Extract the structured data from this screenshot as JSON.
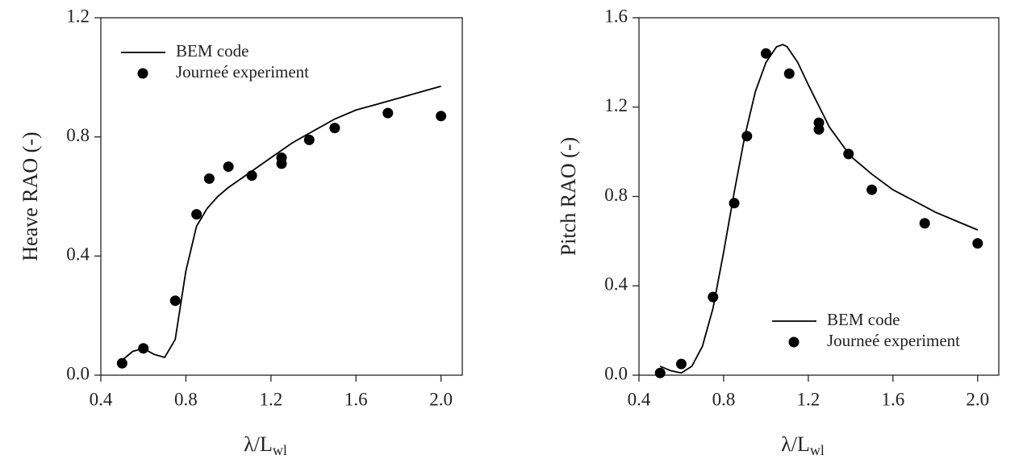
{
  "chart_data": [
    {
      "type": "line_scatter",
      "ylabel": "Heave RAO (-)",
      "xlabel": "λ/L",
      "xlabel_sub": "wl",
      "xlim": [
        0.4,
        2.1
      ],
      "ylim": [
        0,
        1.2
      ],
      "xticks": [
        0.4,
        0.8,
        1.2,
        1.6,
        {
          "value": 2,
          "label": "2.0"
        }
      ],
      "yticks": [
        {
          "value": 0,
          "label": "0.0"
        },
        0.4,
        0.8,
        1.2
      ],
      "legend": "upper left",
      "series": [
        {
          "name": "BEM code",
          "kind": "line",
          "color": "#000000",
          "x": [
            0.5,
            0.55,
            0.6,
            0.65,
            0.7,
            0.75,
            0.8,
            0.85,
            0.9,
            0.95,
            1.0,
            1.1,
            1.2,
            1.3,
            1.4,
            1.5,
            1.6,
            1.7,
            1.8,
            1.9,
            2.0
          ],
          "values": [
            0.05,
            0.08,
            0.09,
            0.07,
            0.06,
            0.12,
            0.35,
            0.5,
            0.56,
            0.6,
            0.63,
            0.68,
            0.73,
            0.78,
            0.82,
            0.86,
            0.89,
            0.91,
            0.93,
            0.95,
            0.97
          ]
        },
        {
          "name": "Journeé experiment",
          "kind": "scatter",
          "color": "#000000",
          "x": [
            0.5,
            0.6,
            0.75,
            0.85,
            0.91,
            1.0,
            1.11,
            1.25,
            1.25,
            1.38,
            1.5,
            1.75,
            2.0
          ],
          "values": [
            0.04,
            0.09,
            0.25,
            0.54,
            0.66,
            0.7,
            0.67,
            0.73,
            0.71,
            0.79,
            0.83,
            0.88,
            0.87
          ]
        }
      ]
    },
    {
      "type": "line_scatter",
      "ylabel": "Pitch RAO (-)",
      "xlabel": "λ/L",
      "xlabel_sub": "wl",
      "xlim": [
        0.4,
        2.1
      ],
      "ylim": [
        0,
        1.6
      ],
      "xticks": [
        0.4,
        0.8,
        1.2,
        1.6,
        {
          "value": 2,
          "label": "2.0"
        }
      ],
      "yticks": [
        {
          "value": 0,
          "label": "0.0"
        },
        0.4,
        0.8,
        1.2,
        1.6
      ],
      "legend": "lower right",
      "series": [
        {
          "name": "BEM code",
          "kind": "line",
          "color": "#000000",
          "x": [
            0.5,
            0.55,
            0.6,
            0.65,
            0.7,
            0.75,
            0.8,
            0.85,
            0.9,
            0.95,
            1.0,
            1.05,
            1.08,
            1.1,
            1.15,
            1.2,
            1.3,
            1.4,
            1.5,
            1.6,
            1.7,
            1.8,
            1.9,
            2.0
          ],
          "values": [
            0.04,
            0.02,
            0.01,
            0.04,
            0.13,
            0.3,
            0.55,
            0.82,
            1.07,
            1.27,
            1.4,
            1.47,
            1.48,
            1.47,
            1.4,
            1.3,
            1.11,
            0.98,
            0.9,
            0.83,
            0.78,
            0.73,
            0.69,
            0.65
          ]
        },
        {
          "name": "Journeé experiment",
          "kind": "scatter",
          "color": "#000000",
          "x": [
            0.5,
            0.6,
            0.75,
            0.85,
            0.91,
            1.0,
            1.11,
            1.25,
            1.25,
            1.39,
            1.5,
            1.75,
            2.0
          ],
          "values": [
            0.01,
            0.05,
            0.35,
            0.77,
            1.07,
            1.44,
            1.35,
            1.13,
            1.1,
            0.99,
            0.83,
            0.68,
            0.59
          ]
        }
      ]
    }
  ]
}
